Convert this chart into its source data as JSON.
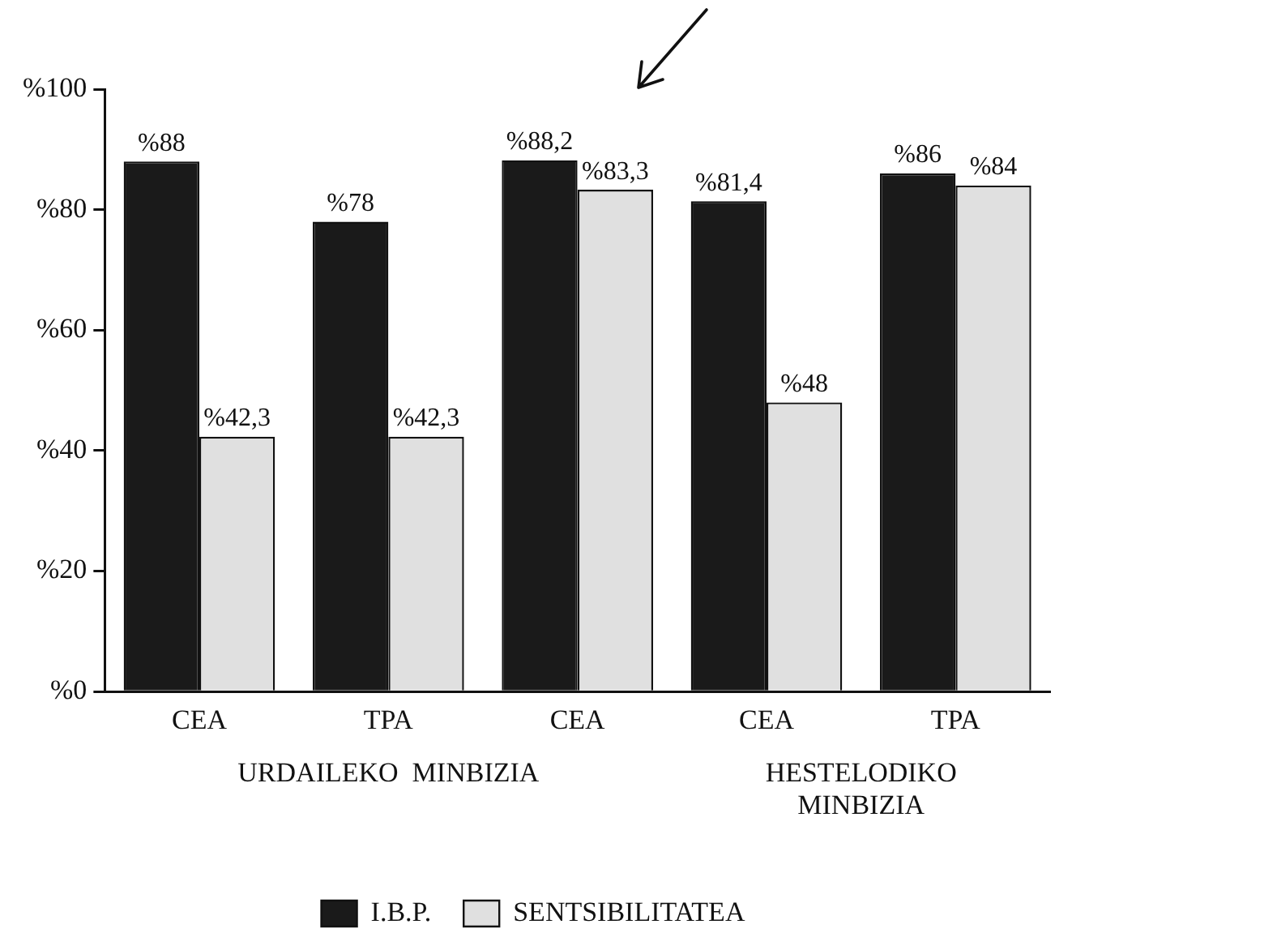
{
  "chart_data": {
    "type": "bar",
    "categories": [
      "CEA",
      "TPA",
      "CEA",
      "CEA",
      "TPA"
    ],
    "series": [
      {
        "name": "I.B.P.",
        "color": "#1a1a1a",
        "values": [
          88,
          78,
          88.2,
          81.4,
          86
        ],
        "value_labels": [
          "%88",
          "%78",
          "%88,2",
          "%81,4",
          "%86"
        ]
      },
      {
        "name": "SENTSIBILITATEA",
        "color": "#e0e0e0",
        "values": [
          42.3,
          42.3,
          83.3,
          48,
          84
        ],
        "value_labels": [
          "%42,3",
          "%42,3",
          "%83,3",
          "%48",
          "%84"
        ]
      }
    ],
    "ylim": [
      0,
      100
    ],
    "yticks": [
      {
        "value": 0,
        "label": "%0"
      },
      {
        "value": 20,
        "label": "%20"
      },
      {
        "value": 40,
        "label": "%40"
      },
      {
        "value": 60,
        "label": "%60"
      },
      {
        "value": 80,
        "label": "%80"
      },
      {
        "value": 100,
        "label": "%100"
      }
    ],
    "annotations": [
      "URDAILEKO  MINBIZIA",
      "HESTELODIKO MINBIZIA"
    ],
    "grid": false,
    "legend": "bottom"
  }
}
